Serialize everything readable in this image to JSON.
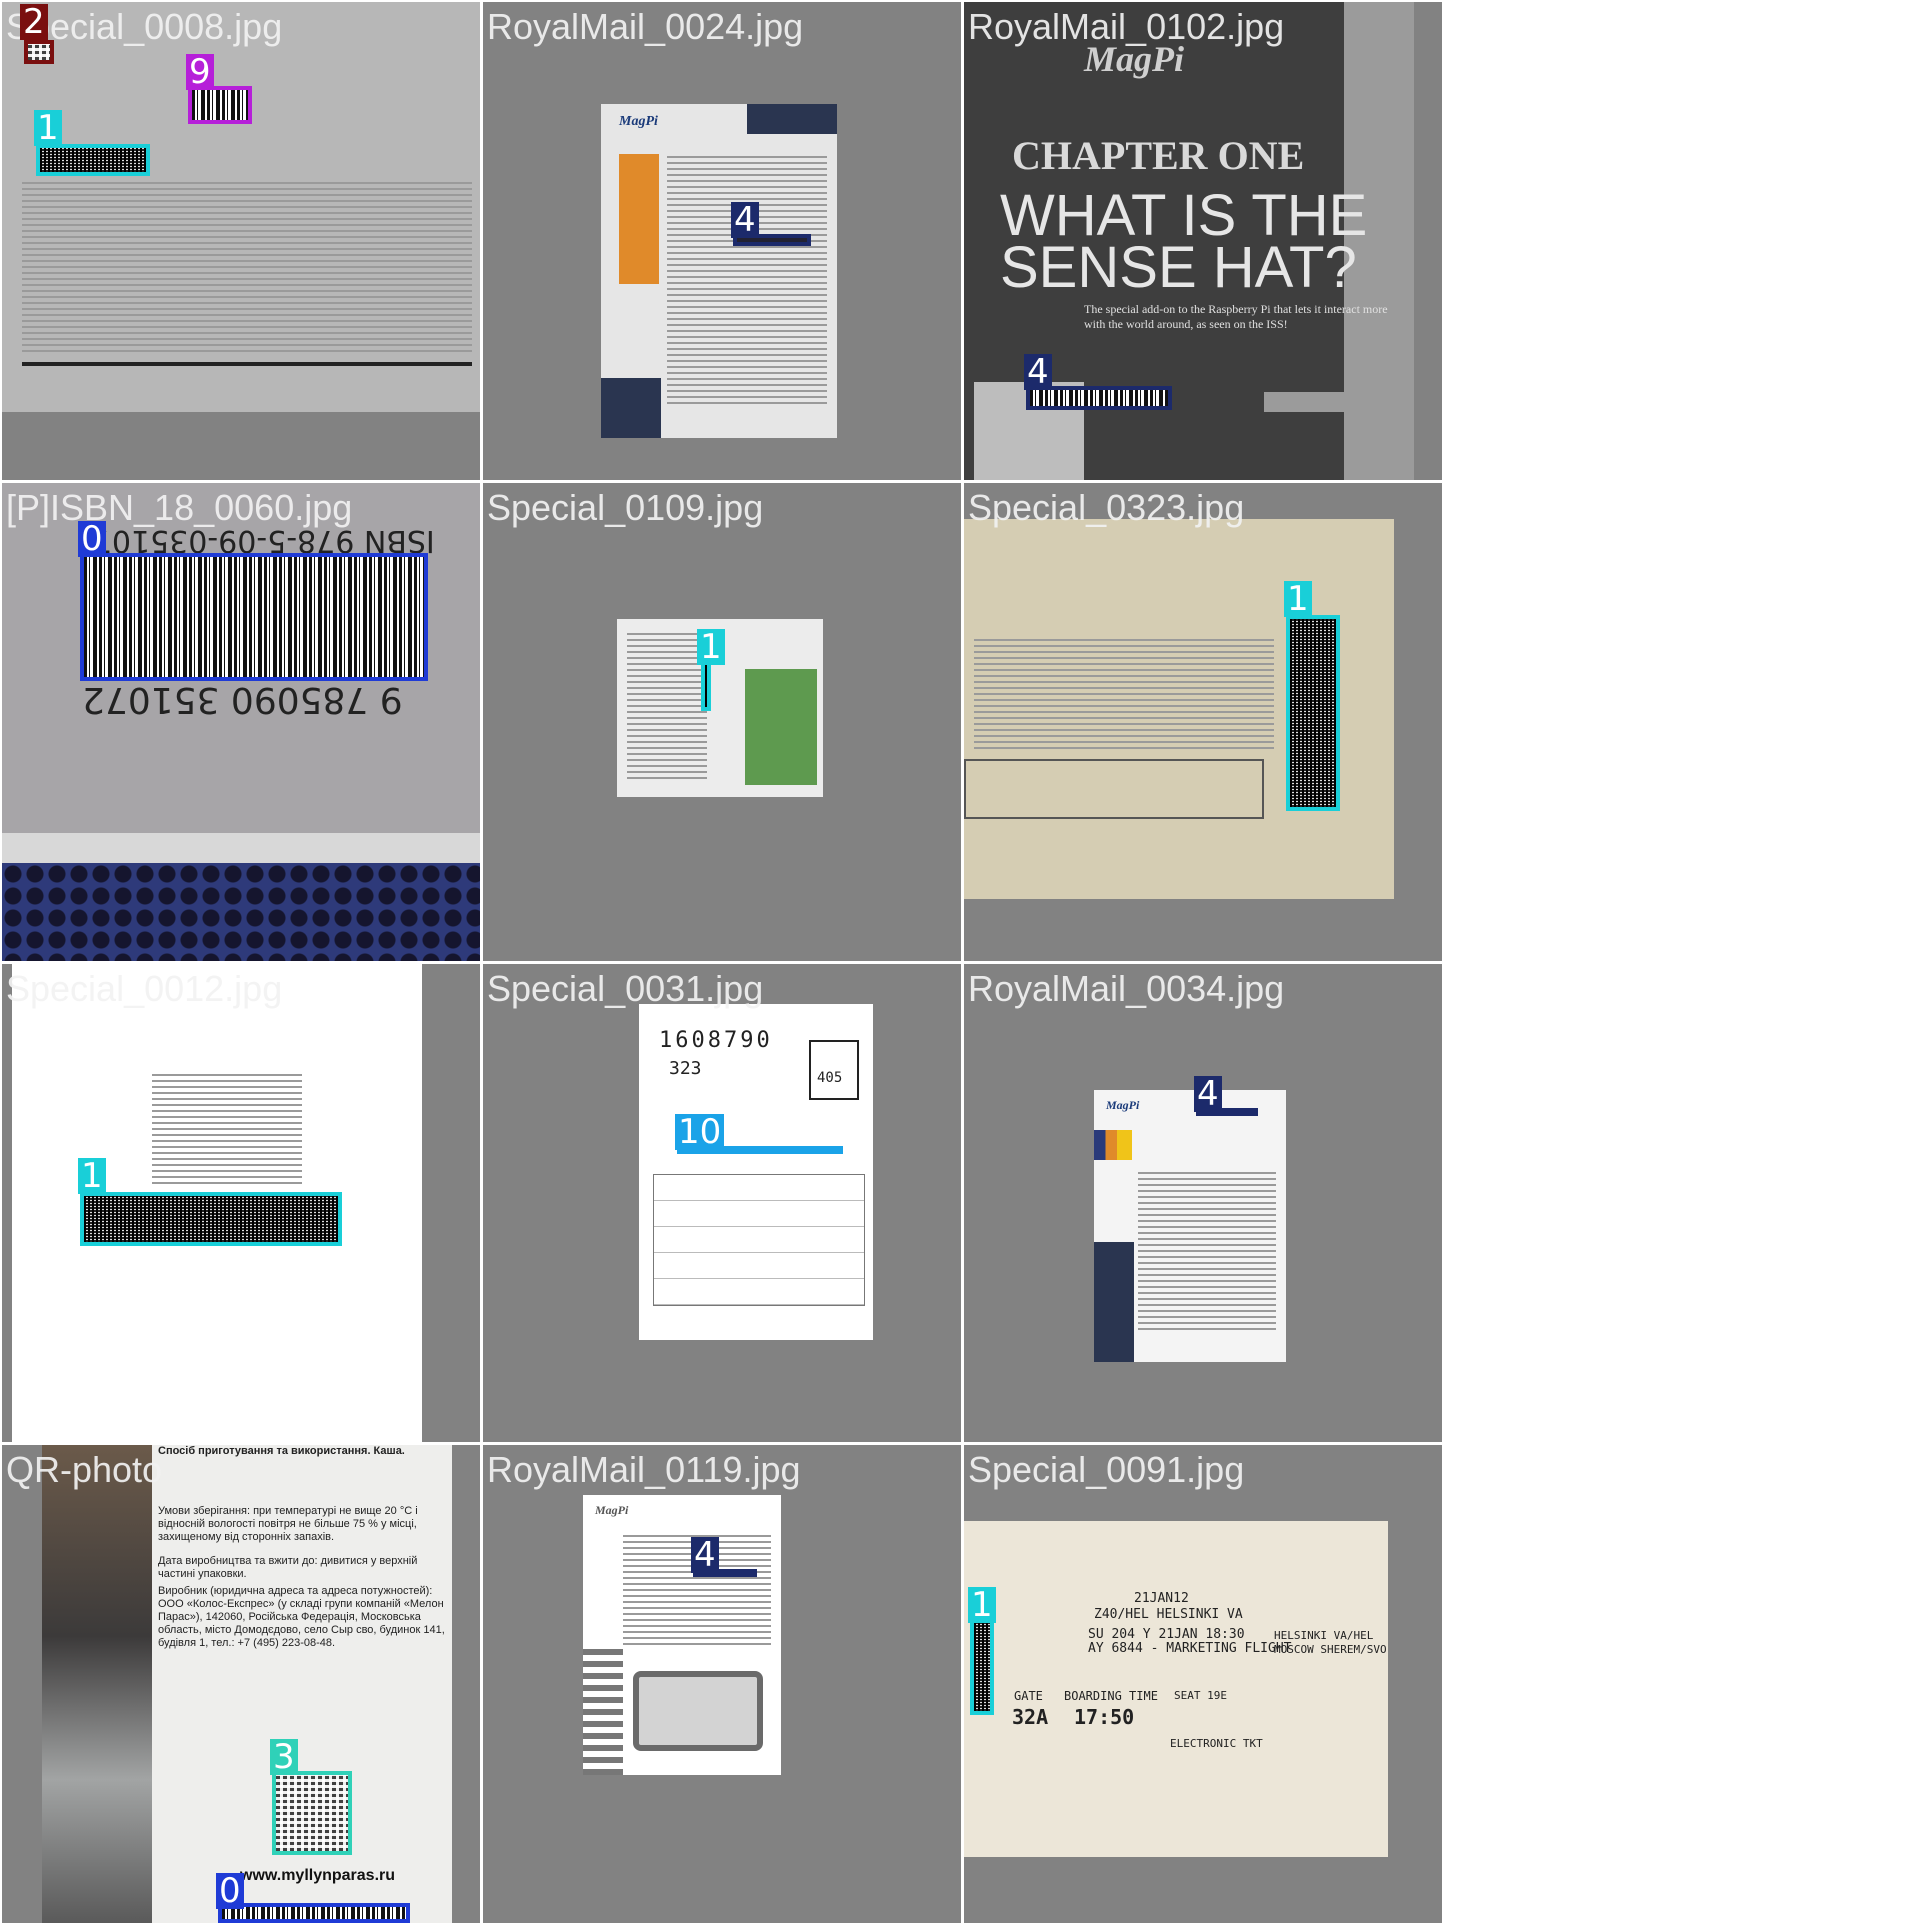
{
  "grid": {
    "tiles": [
      {
        "name": "Special_0008.jpg"
      },
      {
        "name": "RoyalMail_0024.jpg"
      },
      {
        "name": "RoyalMail_0102.jpg"
      },
      {
        "name": "[P]ISBN_18_0060.jpg"
      },
      {
        "name": "Special_0109.jpg"
      },
      {
        "name": "Special_0323.jpg"
      },
      {
        "name": "Special_0012.jpg"
      },
      {
        "name": "Special_0031.jpg"
      },
      {
        "name": "RoyalMail_0034.jpg"
      },
      {
        "name": "QR-photo"
      },
      {
        "name": "RoyalMail_0119.jpg"
      },
      {
        "name": "Special_0091.jpg"
      }
    ]
  },
  "labels": {
    "t0": [
      "2",
      "9",
      "1"
    ],
    "t1": [
      "4"
    ],
    "t2": [
      "4"
    ],
    "t3": [
      "0"
    ],
    "t4": [
      "1"
    ],
    "t5": [
      "1"
    ],
    "t6": [
      "1"
    ],
    "t7": [
      "10"
    ],
    "t8": [
      "4"
    ],
    "t9": [
      "3",
      "0"
    ],
    "t10": [
      "4"
    ],
    "t11": [
      "1"
    ]
  },
  "colors": {
    "class0": "#1f3bd6",
    "class1": "#19cfd8",
    "class2": "#7a0f0f",
    "class3": "#2fd1b8",
    "class4": "#1c2a6b",
    "class9": "#b61fd9",
    "class10": "#1aa3e8"
  },
  "texts": {
    "magpi": "MagPi",
    "chapter": "CHAPTER ONE",
    "headline1": "WHAT IS THE",
    "headline2": "SENSE HAT?",
    "subline": "The special add-on to the Raspberry Pi that lets it interact more with the world around, as seen on the ISS!",
    "isbn_top": "ISBN 978-5-09-035107-",
    "isbn_bottom": "9 785090 351072",
    "url": "www.myllynparas.ru",
    "jp_number": "1608790",
    "jp_code": "405",
    "jp_small": "323",
    "bp_date": "21JAN12",
    "bp_route": "Z40/HEL      HELSINKI  VA",
    "bp_line1": "SU 204  Y 21JAN 18:30",
    "bp_line2": "AY 6844 - MARKETING FLIGHT",
    "bp_gate_label": "GATE",
    "bp_gate": "32A",
    "bp_board_label": "BOARDING TIME",
    "bp_board": "17:50",
    "bp_seat": "SEAT 19E",
    "bp_right": "HELSINKI  VA/HEL",
    "bp_right2": "MOSCOW SHEREM/SVO",
    "bp_tkt": "ELECTRONIC TKT",
    "ua1": "Спосіб приготування та використання. Каша.",
    "ua2": "Умови зберігання: при температурі не вище 20 °С і відносній вологості повітря не більше 75 % у місці, захищеному від сторонніх запахів.",
    "ua3": "Дата виробництва та вжити до: дивитися у верхній частині упаковки.",
    "ua4": "Виробник (юридична адреса та адреса потужностей): ООО «Колос-Експрес» (у складі групи компаній «Мелон Парас»), 142060, Російська Федерація, Московська область, місто Домодєдово, село Сыр сво, будинок 141, будівля 1, тел.: +7 (495) 223-08-48."
  }
}
